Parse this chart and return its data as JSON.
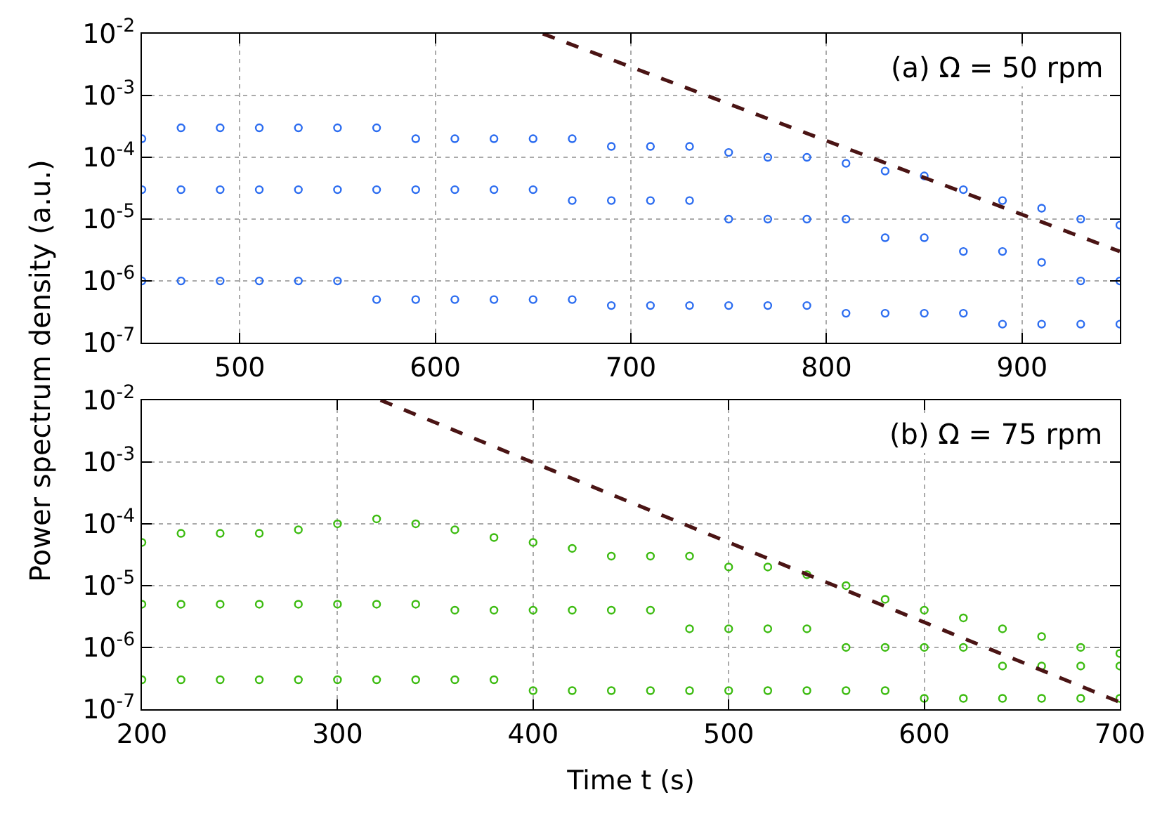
{
  "chart_data": [
    {
      "type": "scatter",
      "ylabel": "Power spectrum density (a.u.)",
      "annotations": [
        "(a) Ω = 50 rpm"
      ],
      "xlim": [
        450,
        950
      ],
      "xticks": [
        500,
        600,
        700,
        800,
        900
      ],
      "ylim": [
        1e-07,
        0.01
      ],
      "yticks": [
        {
          "value": 1e-07,
          "label": "10$^{-7}$"
        },
        {
          "value": 1e-06,
          "label": "10$^{-6}$"
        },
        {
          "value": 1e-05,
          "label": "10$^{-5}$"
        },
        {
          "value": 0.0001,
          "label": "10$^{-4}$"
        },
        {
          "value": 0.001,
          "label": "10$^{-3}$"
        },
        {
          "value": 0.01,
          "label": "10$^{-2}$"
        }
      ],
      "log": true,
      "grid": true,
      "marker": "circle",
      "series": [
        {
          "color": "#2b6cf0",
          "x": [
            450,
            470,
            490,
            510,
            530,
            550,
            570,
            590,
            610,
            630,
            650,
            670,
            690,
            710,
            730,
            750,
            770,
            790,
            810,
            830,
            850,
            870,
            890,
            910,
            930,
            950,
            450,
            470,
            490,
            510,
            530,
            550,
            570,
            590,
            610,
            630,
            650,
            670,
            690,
            710,
            730,
            750,
            770,
            790,
            810,
            830,
            850,
            870,
            890,
            910,
            930,
            950,
            450,
            470,
            490,
            510,
            530,
            550,
            570,
            590,
            610,
            630,
            650,
            670,
            690,
            710,
            730,
            750,
            770,
            790,
            810,
            830,
            850,
            870,
            890,
            910,
            930,
            950
          ],
          "values": [
            0.0002,
            0.0003,
            0.0003,
            0.0003,
            0.0003,
            0.0003,
            0.0003,
            0.0002,
            0.0002,
            0.0002,
            0.0002,
            0.0002,
            0.00015,
            0.00015,
            0.00015,
            0.00012,
            0.0001,
            0.0001,
            8e-05,
            6e-05,
            5e-05,
            3e-05,
            2e-05,
            1.5e-05,
            1e-05,
            8e-06,
            3e-05,
            3e-05,
            3e-05,
            3e-05,
            3e-05,
            3e-05,
            3e-05,
            3e-05,
            3e-05,
            3e-05,
            3e-05,
            2e-05,
            2e-05,
            2e-05,
            2e-05,
            1e-05,
            1e-05,
            1e-05,
            1e-05,
            5e-06,
            5e-06,
            3e-06,
            3e-06,
            2e-06,
            1e-06,
            1e-06,
            1e-06,
            1e-06,
            1e-06,
            1e-06,
            1e-06,
            1e-06,
            5e-07,
            5e-07,
            5e-07,
            5e-07,
            5e-07,
            5e-07,
            4e-07,
            4e-07,
            4e-07,
            4e-07,
            4e-07,
            4e-07,
            3e-07,
            3e-07,
            3e-07,
            3e-07,
            2e-07,
            2e-07,
            2e-07,
            2e-07
          ]
        },
        {
          "type": "line",
          "color": "#4a1414",
          "line_style": "dashed",
          "marker": "none",
          "x": [
            655,
            950
          ],
          "values": [
            0.01,
            3e-06
          ]
        }
      ]
    },
    {
      "type": "scatter",
      "xlabel": "Time t (s)",
      "annotations": [
        "(b) Ω = 75 rpm"
      ],
      "xlim": [
        200,
        700
      ],
      "xticks": [
        200,
        300,
        400,
        500,
        600,
        700
      ],
      "ylim": [
        1e-07,
        0.01
      ],
      "yticks": [
        {
          "value": 1e-07,
          "label": "10$^{-7}$"
        },
        {
          "value": 1e-06,
          "label": "10$^{-6}$"
        },
        {
          "value": 1e-05,
          "label": "10$^{-5}$"
        },
        {
          "value": 0.0001,
          "label": "10$^{-4}$"
        },
        {
          "value": 0.001,
          "label": "10$^{-3}$"
        },
        {
          "value": 0.01,
          "label": "10$^{-2}$"
        }
      ],
      "log": true,
      "grid": true,
      "marker": "circle",
      "series": [
        {
          "color": "#3cbb10",
          "x": [
            200,
            220,
            240,
            260,
            280,
            300,
            320,
            340,
            360,
            380,
            400,
            420,
            440,
            460,
            480,
            500,
            520,
            540,
            560,
            580,
            600,
            620,
            640,
            660,
            680,
            700,
            200,
            220,
            240,
            260,
            280,
            300,
            320,
            340,
            360,
            380,
            400,
            420,
            440,
            460,
            480,
            500,
            520,
            540,
            560,
            580,
            600,
            620,
            640,
            660,
            680,
            700,
            200,
            220,
            240,
            260,
            280,
            300,
            320,
            340,
            360,
            380,
            400,
            420,
            440,
            460,
            480,
            500,
            520,
            540,
            560,
            580,
            600,
            620,
            640,
            660,
            680,
            700
          ],
          "values": [
            5e-05,
            7e-05,
            7e-05,
            7e-05,
            8e-05,
            0.0001,
            0.00012,
            0.0001,
            8e-05,
            6e-05,
            5e-05,
            4e-05,
            3e-05,
            3e-05,
            3e-05,
            2e-05,
            2e-05,
            1.5e-05,
            1e-05,
            6e-06,
            4e-06,
            3e-06,
            2e-06,
            1.5e-06,
            1e-06,
            8e-07,
            5e-06,
            5e-06,
            5e-06,
            5e-06,
            5e-06,
            5e-06,
            5e-06,
            5e-06,
            4e-06,
            4e-06,
            4e-06,
            4e-06,
            4e-06,
            4e-06,
            2e-06,
            2e-06,
            2e-06,
            2e-06,
            1e-06,
            1e-06,
            1e-06,
            1e-06,
            5e-07,
            5e-07,
            5e-07,
            5e-07,
            3e-07,
            3e-07,
            3e-07,
            3e-07,
            3e-07,
            3e-07,
            3e-07,
            3e-07,
            3e-07,
            3e-07,
            2e-07,
            2e-07,
            2e-07,
            2e-07,
            2e-07,
            2e-07,
            2e-07,
            2e-07,
            2e-07,
            2e-07,
            1.5e-07,
            1.5e-07,
            1.5e-07,
            1.5e-07,
            1.5e-07,
            1.5e-07
          ]
        },
        {
          "type": "line",
          "color": "#4a1414",
          "line_style": "dashed",
          "marker": "none",
          "x": [
            322,
            700
          ],
          "values": [
            0.01,
            1.3e-07
          ]
        }
      ]
    }
  ]
}
